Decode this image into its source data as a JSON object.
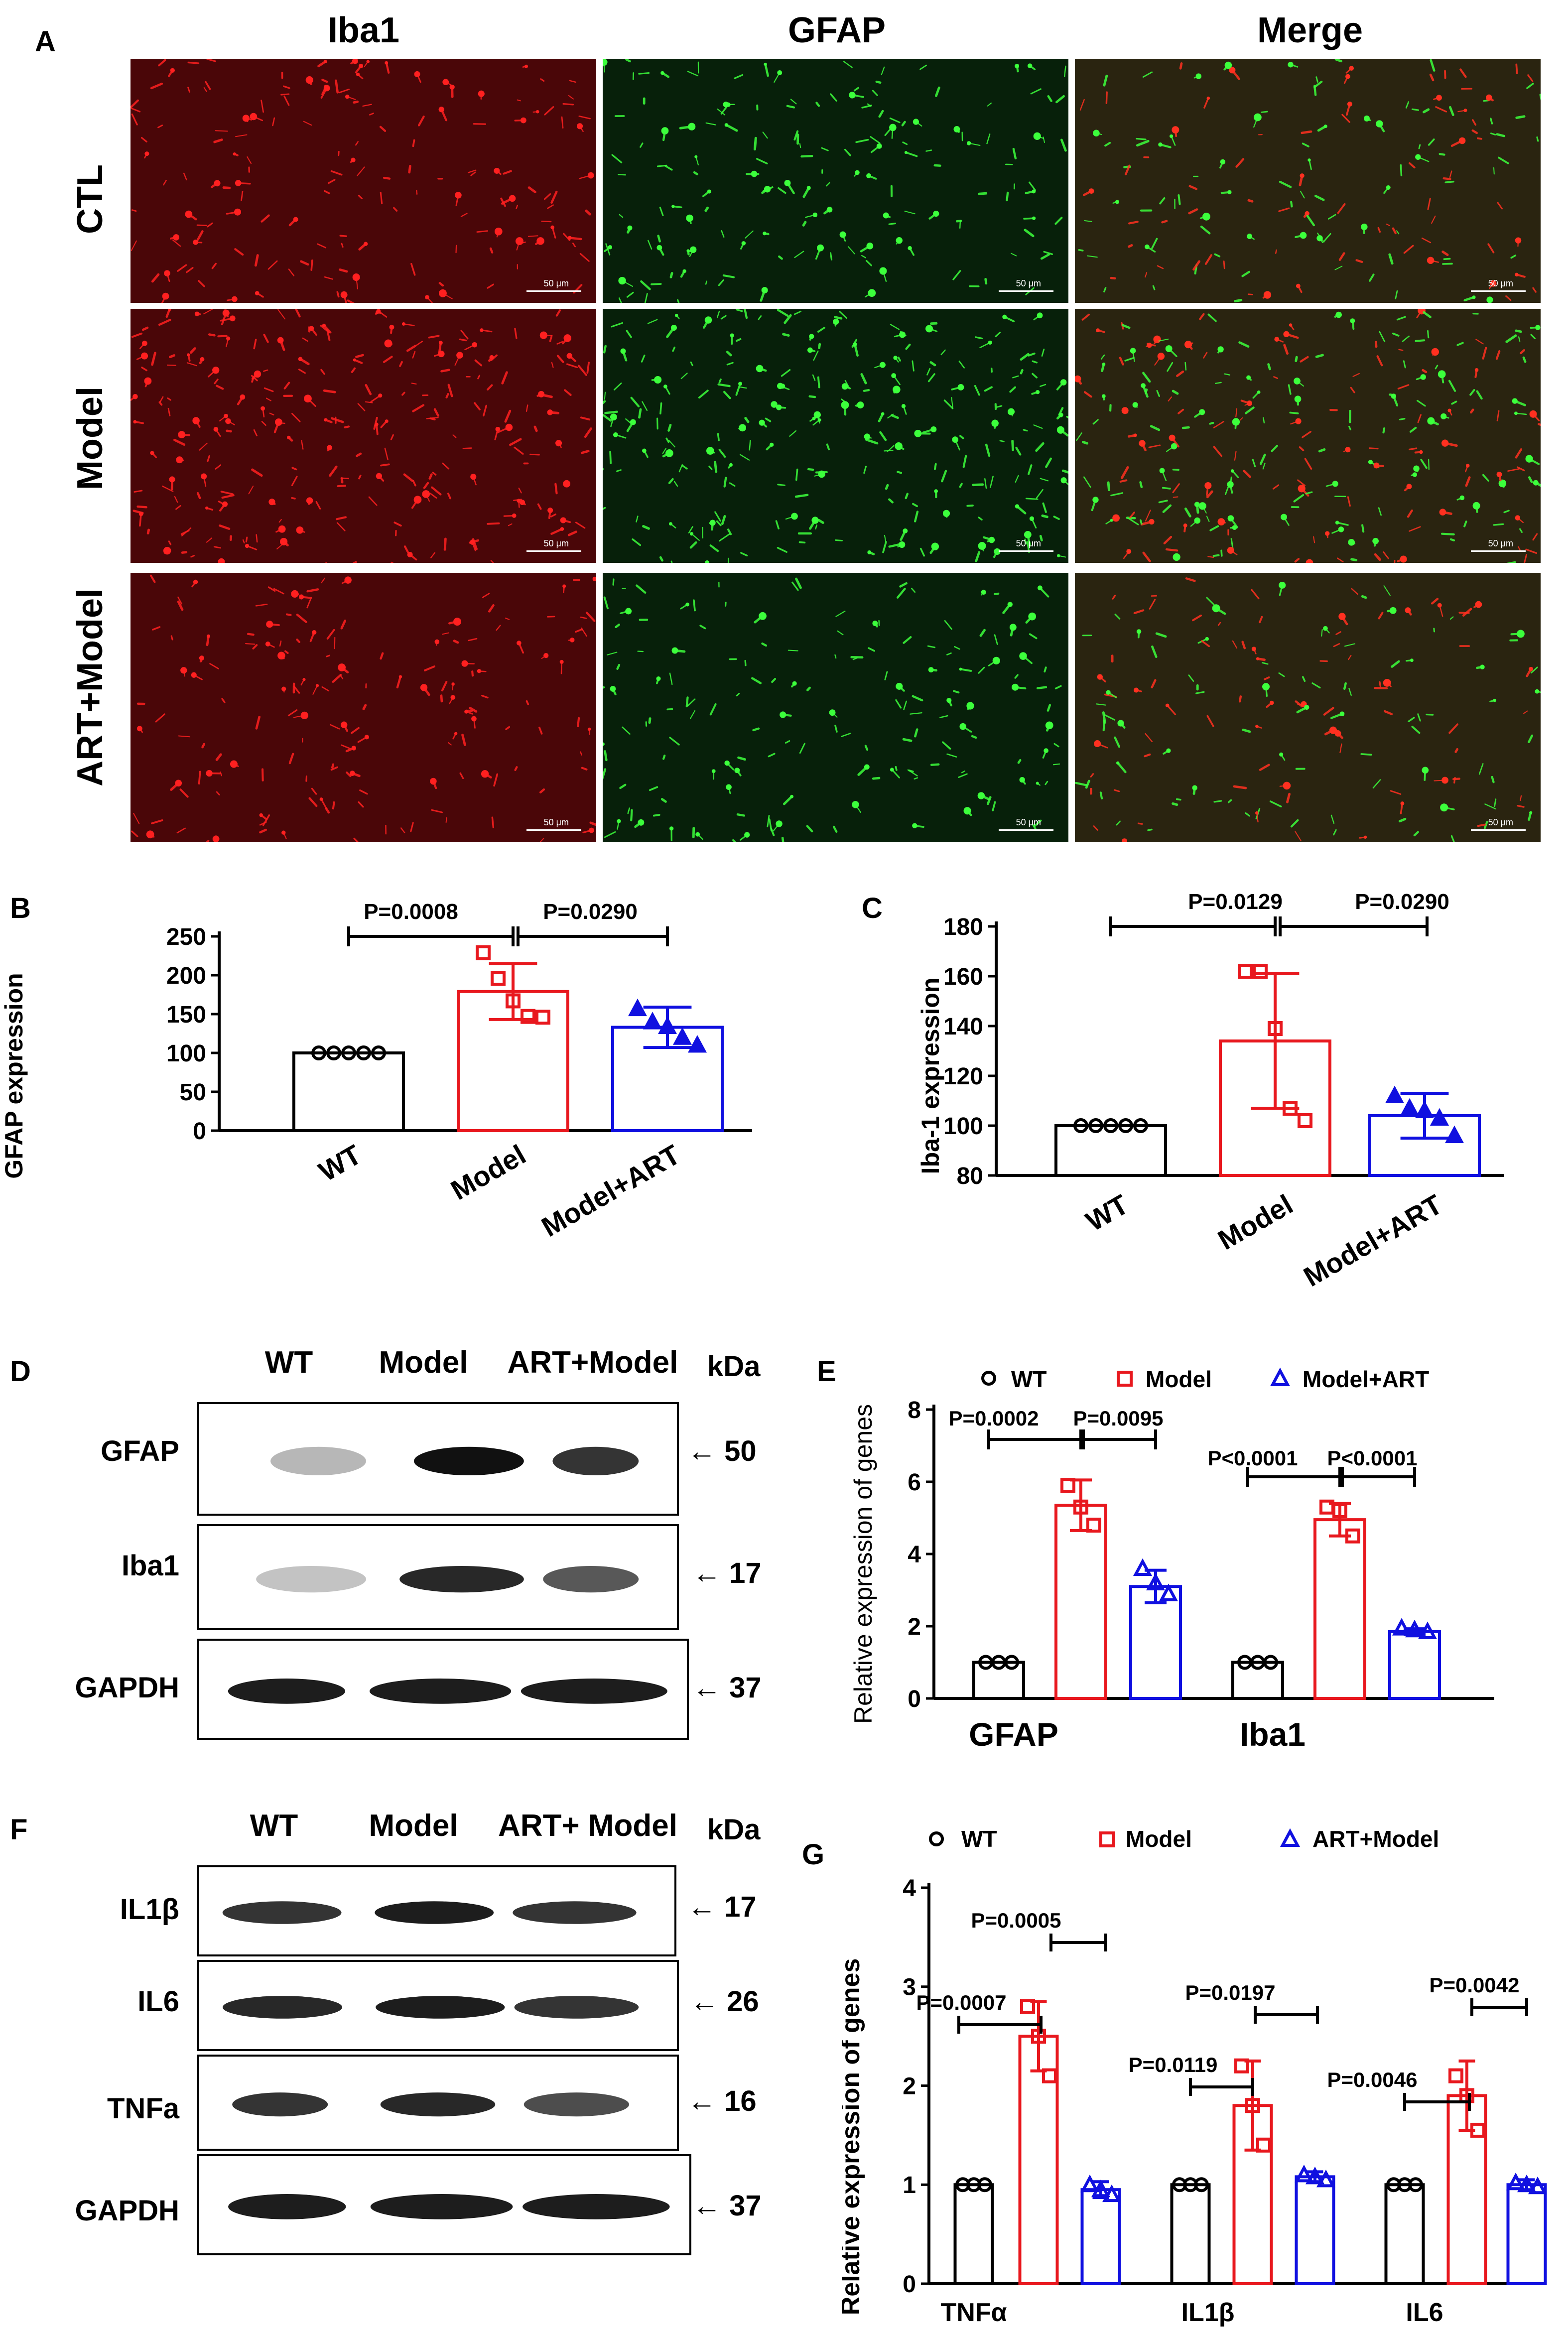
{
  "panelA": {
    "label": "A",
    "columns": [
      "Iba1",
      "GFAP",
      "Merge"
    ],
    "rows": [
      "CTL",
      "Model",
      "ART+Model"
    ],
    "scale_bar": "50 μm"
  },
  "panelB": {
    "label": "B",
    "ylabel": "GFAP expression",
    "yticks": [
      "0",
      "50",
      "100",
      "150",
      "200",
      "250"
    ],
    "categories": [
      "WT",
      "Model",
      "Model+ART"
    ],
    "p1": "P=0.0008",
    "p2": "P=0.0290"
  },
  "panelC": {
    "label": "C",
    "ylabel": "Iba-1 expression",
    "yticks": [
      "80",
      "100",
      "120",
      "140",
      "160",
      "180"
    ],
    "categories": [
      "WT",
      "Model",
      "Model+ART"
    ],
    "p1": "P=0.0129",
    "p2": "P=0.0290"
  },
  "panelD": {
    "label": "D",
    "lanes": [
      "WT",
      "Model",
      "ART+Model"
    ],
    "unit": "kDa",
    "blots": [
      {
        "name": "GFAP",
        "kda": "50"
      },
      {
        "name": "Iba1",
        "kda": "17"
      },
      {
        "name": "GAPDH",
        "kda": "37"
      }
    ]
  },
  "panelE": {
    "label": "E",
    "legend": [
      "WT",
      "Model",
      "Model+ART"
    ],
    "ylabel": "Relative expression of genes",
    "yticks": [
      "0",
      "2",
      "4",
      "6",
      "8"
    ],
    "groups": [
      "GFAP",
      "Iba1"
    ],
    "pvals": [
      "P=0.0002",
      "P=0.0095",
      "P<0.0001",
      "P<0.0001"
    ]
  },
  "panelF": {
    "label": "F",
    "lanes": [
      "WT",
      "Model",
      "ART+ Model"
    ],
    "unit": "kDa",
    "blots": [
      {
        "name": "IL1β",
        "kda": "17"
      },
      {
        "name": "IL6",
        "kda": "26"
      },
      {
        "name": "TNFa",
        "kda": "16"
      },
      {
        "name": "GAPDH",
        "kda": "37"
      }
    ]
  },
  "panelG": {
    "label": "G",
    "legend": [
      "WT",
      "Model",
      "ART+Model"
    ],
    "ylabel": "Relative expression of genes",
    "yticks": [
      "0",
      "1",
      "2",
      "3",
      "4"
    ],
    "groups": [
      "TNFα",
      "IL1β",
      "IL6"
    ],
    "pvals": [
      "P=0.0007",
      "P=0.0005",
      "P=0.0119",
      "P=0.0197",
      "P=0.0046",
      "P=0.0042"
    ]
  },
  "chart_data": [
    {
      "type": "bar",
      "panel": "B",
      "categories": [
        "WT",
        "Model",
        "Model+ART"
      ],
      "values": [
        100,
        179,
        133
      ],
      "errors": [
        0,
        36,
        26
      ],
      "points": [
        [
          100,
          100,
          100,
          100,
          100
        ],
        [
          229,
          196,
          167,
          147,
          146
        ],
        [
          157,
          140,
          134,
          120,
          110
        ]
      ],
      "colors": [
        "#000000",
        "#e8181e",
        "#1010e0"
      ],
      "ylabel": "GFAP expression",
      "ylim": [
        0,
        250
      ]
    },
    {
      "type": "bar",
      "panel": "C",
      "categories": [
        "WT",
        "Model",
        "Model+ART"
      ],
      "values": [
        100,
        134,
        104
      ],
      "errors": [
        0,
        27,
        9
      ],
      "points": [
        [
          100,
          100,
          100,
          100,
          100
        ],
        [
          162,
          162,
          139,
          107,
          102
        ],
        [
          112,
          107,
          106,
          103,
          96
        ]
      ],
      "colors": [
        "#000000",
        "#e8181e",
        "#1010e0"
      ],
      "ylabel": "Iba-1 expression",
      "ylim": [
        80,
        180
      ]
    },
    {
      "type": "bar",
      "panel": "E",
      "categories": [
        "GFAP",
        "Iba1"
      ],
      "series": [
        {
          "name": "WT",
          "values": [
            1.0,
            1.0
          ],
          "errors": [
            0,
            0
          ],
          "points": [
            [
              1,
              1,
              1
            ],
            [
              1,
              1,
              1
            ]
          ],
          "color": "#000000"
        },
        {
          "name": "Model",
          "values": [
            5.35,
            4.95
          ],
          "errors": [
            0.7,
            0.45
          ],
          "points": [
            [
              5.9,
              5.3,
              4.8
            ],
            [
              5.3,
              5.2,
              4.5
            ]
          ],
          "color": "#e8181e"
        },
        {
          "name": "Model+ART",
          "values": [
            3.1,
            1.85
          ],
          "errors": [
            0.45,
            0.08
          ],
          "points": [
            [
              3.6,
              3.2,
              2.9
            ],
            [
              1.95,
              1.9,
              1.85
            ]
          ],
          "color": "#1010e0"
        }
      ],
      "ylabel": "Relative expression of genes",
      "ylim": [
        0,
        8
      ]
    },
    {
      "type": "bar",
      "panel": "G",
      "categories": [
        "TNFα",
        "IL1β",
        "IL6"
      ],
      "series": [
        {
          "name": "WT",
          "values": [
            1.0,
            1.0,
            1.0
          ],
          "errors": [
            0,
            0,
            0
          ],
          "points": [
            [
              1,
              1,
              1
            ],
            [
              1,
              1,
              1
            ],
            [
              1,
              1,
              1
            ]
          ],
          "color": "#000000"
        },
        {
          "name": "Model",
          "values": [
            2.5,
            1.8,
            1.9
          ],
          "errors": [
            0.35,
            0.45,
            0.35
          ],
          "points": [
            [
              2.8,
              2.5,
              2.1
            ],
            [
              2.2,
              1.8,
              1.4
            ],
            [
              2.1,
              1.9,
              1.55
            ]
          ],
          "color": "#e8181e"
        },
        {
          "name": "ART+Model",
          "values": [
            0.95,
            1.08,
            1.0
          ],
          "errors": [
            0.08,
            0.05,
            0.05
          ],
          "points": [
            [
              1.0,
              0.95,
              0.9
            ],
            [
              1.1,
              1.08,
              1.05
            ],
            [
              1.02,
              1.0,
              0.98
            ]
          ],
          "color": "#1010e0"
        }
      ],
      "ylabel": "Relative expression of genes",
      "ylim": [
        0,
        4
      ]
    }
  ]
}
